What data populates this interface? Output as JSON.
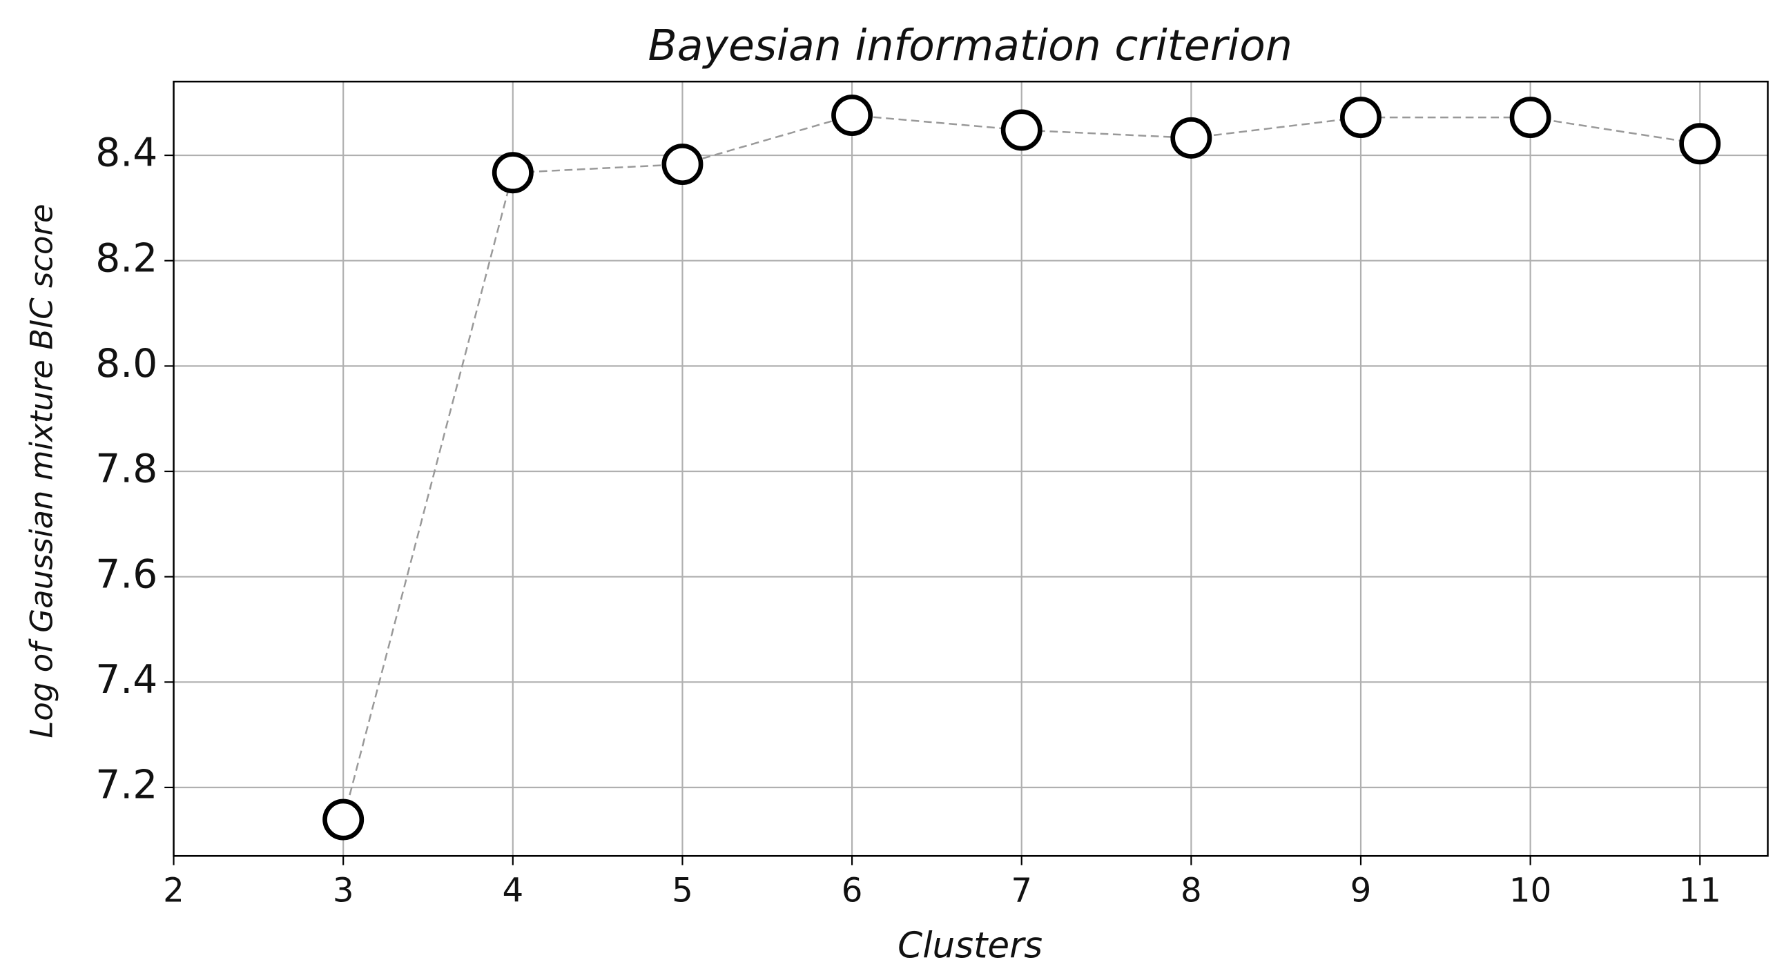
{
  "chart_data": {
    "type": "line",
    "title": "Bayesian information criterion",
    "x_label": "Clusters",
    "y_label": "Log of Gaussian mixture BIC score",
    "x": [
      3,
      4,
      5,
      6,
      7,
      8,
      9,
      10,
      11
    ],
    "series": [
      {
        "color": "#000000",
        "values": [
          7.139,
          8.367,
          8.383,
          8.476,
          8.448,
          8.433,
          8.472,
          8.472,
          8.422
        ]
      }
    ],
    "xlim": [
      2,
      11.4
    ],
    "ylim": [
      7.07,
      8.54
    ],
    "xticks": [
      2,
      3,
      4,
      5,
      6,
      7,
      8,
      9,
      10,
      11
    ],
    "yticks": [
      7.2,
      7.4,
      7.6,
      7.8,
      8.0,
      8.2,
      8.4
    ],
    "grid": true
  }
}
